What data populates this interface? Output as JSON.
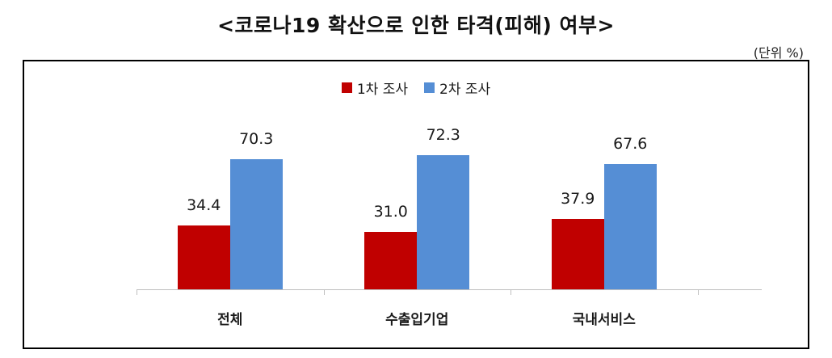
{
  "chart_data": {
    "type": "bar",
    "title": "<코로나19 확산으로 인한 타격(피해) 여부>",
    "unit_note": "(단위  %)",
    "xlabel": "",
    "ylabel": "",
    "ylim": [
      0,
      80
    ],
    "grid": false,
    "legend_position": "top",
    "categories": [
      "전체",
      "수출입기업",
      "국내서비스"
    ],
    "series": [
      {
        "name": "1차 조사",
        "color": "#C00000",
        "values": [
          34.4,
          31.0,
          37.9
        ],
        "labels": [
          "34.4",
          "31.0",
          "37.9"
        ]
      },
      {
        "name": "2차 조사",
        "color": "#558ED5",
        "values": [
          70.3,
          72.3,
          67.6
        ],
        "labels": [
          "70.3",
          "72.3",
          "67.6"
        ]
      }
    ]
  }
}
